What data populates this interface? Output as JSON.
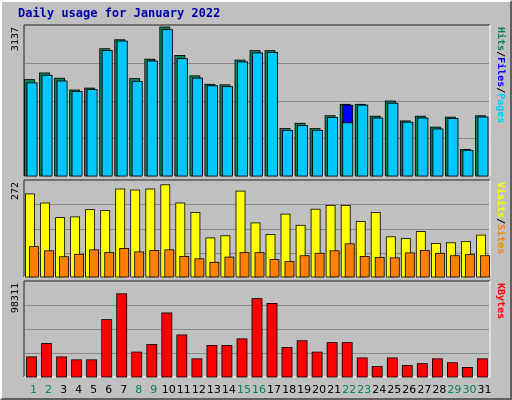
{
  "chart_data": {
    "type": "bar",
    "title": "Daily usage for January 2022",
    "categories": [
      "1",
      "2",
      "3",
      "4",
      "5",
      "6",
      "7",
      "8",
      "9",
      "10",
      "11",
      "12",
      "13",
      "14",
      "15",
      "16",
      "17",
      "18",
      "19",
      "20",
      "21",
      "22",
      "23",
      "24",
      "25",
      "26",
      "27",
      "28",
      "29",
      "30",
      "31"
    ],
    "weekend_days": [
      "1",
      "2",
      "8",
      "9",
      "15",
      "16",
      "22",
      "23",
      "29",
      "30"
    ],
    "panels": [
      {
        "id": "hits-files-pages",
        "ymax": 3137,
        "ymax_label": "3137",
        "axis_labels": [
          {
            "text": "Hits",
            "color": "#00805c"
          },
          {
            "text": "Files",
            "color": "#0000ff"
          },
          {
            "text": "Pages",
            "color": "#00c8ff"
          }
        ],
        "series": [
          {
            "name": "Hits",
            "color": "#00805c",
            "values": [
              2030,
              2170,
              2060,
              1810,
              1850,
              2680,
              2870,
              2050,
              2460,
              3137,
              2540,
              2110,
              1930,
              1920,
              2440,
              2640,
              2640,
              1000,
              1110,
              1000,
              1270,
              1510,
              1510,
              1260,
              1580,
              1160,
              1260,
              1030,
              1240,
              560,
              1270
            ]
          },
          {
            "name": "Files",
            "color": "#0000ff",
            "values": [
              1960,
              2120,
              2000,
              1780,
              1820,
              2640,
              2840,
              1990,
              2420,
              3080,
              2470,
              2060,
              1900,
              1880,
              2400,
              2590,
              2600,
              960,
              1060,
              960,
              1230,
              1490,
              1490,
              1220,
              1530,
              1130,
              1220,
              990,
              1210,
              540,
              1240
            ]
          },
          {
            "name": "Pages",
            "color": "#00c8ff",
            "values": [
              1960,
              2120,
              2000,
              1780,
              1820,
              2640,
              2840,
              1990,
              2420,
              3080,
              2470,
              2060,
              1900,
              1880,
              2400,
              2590,
              2600,
              960,
              1060,
              960,
              1230,
              1120,
              1490,
              1220,
              1530,
              1130,
              1220,
              990,
              1210,
              540,
              1240
            ]
          }
        ]
      },
      {
        "id": "visits-sites",
        "ymax": 272,
        "ymax_label": "272",
        "axis_labels": [
          {
            "text": "Visits",
            "color": "#ffff00"
          },
          {
            "text": "Sites",
            "color": "#ff8000"
          }
        ],
        "series": [
          {
            "name": "Visits",
            "color": "#ffff00",
            "values": [
              238,
              212,
              170,
              172,
              193,
              190,
              252,
              249,
              252,
              264,
              212,
              185,
              112,
              118,
              246,
              155,
              122,
              180,
              148,
              194,
              205,
              205,
              159,
              185,
              115,
              110,
              130,
              96,
              98,
              102,
              120
            ]
          },
          {
            "name": "Sites",
            "color": "#ff8000",
            "values": [
              87,
              75,
              58,
              65,
              78,
              70,
              82,
              72,
              76,
              78,
              59,
              52,
              42,
              57,
              70,
              70,
              50,
              44,
              61,
              68,
              75,
              95,
              59,
              56,
              55,
              69,
              76,
              68,
              61,
              64,
              61
            ]
          }
        ]
      },
      {
        "id": "kbytes",
        "ymax": 98311,
        "ymax_label": "98311",
        "axis_labels": [
          {
            "text": "KBytes",
            "color": "#ff0000"
          }
        ],
        "series": [
          {
            "name": "KBytes",
            "color": "#ff0000",
            "values": [
              21000,
              35000,
              21000,
              18000,
              18000,
              60000,
              87000,
              26000,
              34000,
              67000,
              44000,
              19000,
              33000,
              33000,
              40000,
              82000,
              77000,
              31000,
              38000,
              26000,
              36000,
              36000,
              20000,
              11000,
              20000,
              12000,
              14000,
              19000,
              15000,
              10000,
              19000
            ]
          }
        ]
      }
    ]
  }
}
